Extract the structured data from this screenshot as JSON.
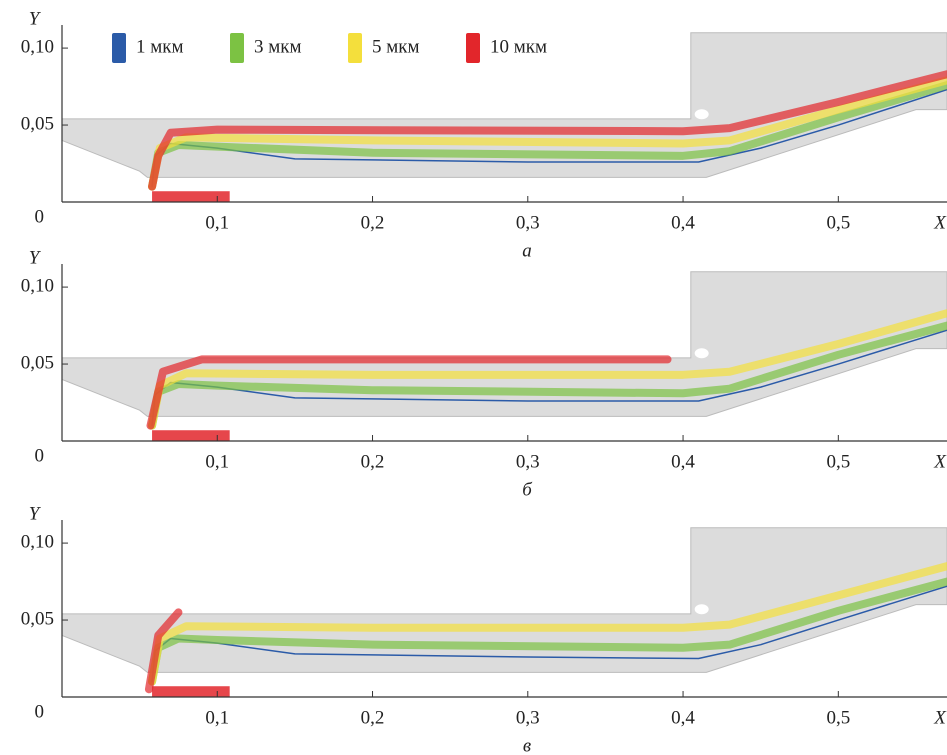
{
  "chart_data": [
    {
      "type": "line",
      "x_label": "X",
      "y_label": "Y",
      "caption": "а",
      "xlim": [
        0,
        0.57
      ],
      "ylim": [
        0,
        0.115
      ],
      "xticks": [
        {
          "value": 0.1,
          "label": "0,1"
        },
        {
          "value": 0.2,
          "label": "0,2"
        },
        {
          "value": 0.3,
          "label": "0,3"
        },
        {
          "value": 0.4,
          "label": "0,4"
        },
        {
          "value": 0.5,
          "label": "0,5"
        }
      ],
      "yticks": [
        0,
        {
          "value": 0.05,
          "label": "0,05"
        },
        {
          "value": 0.1,
          "label": "0,10"
        }
      ],
      "series": [
        {
          "name": "1 мкм",
          "color": "#2b5ba8",
          "x": [
            0.058,
            0.06,
            0.07,
            0.1,
            0.15,
            0.3,
            0.41,
            0.45,
            0.5,
            0.57
          ],
          "values": [
            0.01,
            0.03,
            0.038,
            0.035,
            0.028,
            0.026,
            0.026,
            0.035,
            0.05,
            0.073
          ]
        },
        {
          "name": "3 мкм",
          "color": "#7cc243",
          "x": [
            0.058,
            0.062,
            0.075,
            0.1,
            0.2,
            0.4,
            0.43,
            0.5,
            0.57
          ],
          "values": [
            0.01,
            0.032,
            0.037,
            0.036,
            0.032,
            0.03,
            0.033,
            0.055,
            0.076
          ]
        },
        {
          "name": "5 мкм",
          "color": "#f4df3c",
          "x": [
            0.058,
            0.063,
            0.08,
            0.2,
            0.4,
            0.43,
            0.5,
            0.57
          ],
          "values": [
            0.01,
            0.035,
            0.042,
            0.04,
            0.038,
            0.04,
            0.06,
            0.079
          ]
        },
        {
          "name": "10 мкм",
          "color": "#e2262b",
          "x": [
            0.058,
            0.062,
            0.07,
            0.1,
            0.4,
            0.43,
            0.5,
            0.57
          ],
          "values": [
            0.01,
            0.03,
            0.045,
            0.047,
            0.046,
            0.048,
            0.065,
            0.083
          ]
        }
      ]
    },
    {
      "type": "line",
      "x_label": "X",
      "y_label": "Y",
      "caption": "б",
      "xlim": [
        0,
        0.57
      ],
      "ylim": [
        0,
        0.115
      ],
      "xticks": [
        {
          "value": 0.1,
          "label": "0,1"
        },
        {
          "value": 0.2,
          "label": "0,2"
        },
        {
          "value": 0.3,
          "label": "0,3"
        },
        {
          "value": 0.4,
          "label": "0,4"
        },
        {
          "value": 0.5,
          "label": "0,5"
        }
      ],
      "yticks": [
        0,
        {
          "value": 0.05,
          "label": "0,05"
        },
        {
          "value": 0.1,
          "label": "0,10"
        }
      ],
      "series": [
        {
          "color": "#2b5ba8",
          "x": [
            0.058,
            0.06,
            0.07,
            0.1,
            0.15,
            0.3,
            0.41,
            0.45,
            0.5,
            0.57
          ],
          "values": [
            0.01,
            0.03,
            0.038,
            0.035,
            0.028,
            0.026,
            0.026,
            0.035,
            0.05,
            0.072
          ]
        },
        {
          "color": "#7cc243",
          "x": [
            0.058,
            0.062,
            0.075,
            0.1,
            0.2,
            0.4,
            0.43,
            0.5,
            0.57
          ],
          "values": [
            0.01,
            0.032,
            0.037,
            0.036,
            0.033,
            0.031,
            0.034,
            0.056,
            0.075
          ]
        },
        {
          "color": "#f4df3c",
          "x": [
            0.058,
            0.063,
            0.08,
            0.2,
            0.4,
            0.43,
            0.5,
            0.57
          ],
          "values": [
            0.01,
            0.036,
            0.044,
            0.043,
            0.043,
            0.045,
            0.063,
            0.083
          ]
        },
        {
          "color": "#e2262b",
          "x": [
            0.057,
            0.065,
            0.09,
            0.39
          ],
          "values": [
            0.01,
            0.045,
            0.053,
            0.053
          ]
        }
      ]
    },
    {
      "type": "line",
      "x_label": "X",
      "y_label": "Y",
      "caption": "в",
      "xlim": [
        0,
        0.57
      ],
      "ylim": [
        0,
        0.115
      ],
      "xticks": [
        {
          "value": 0.1,
          "label": "0,1"
        },
        {
          "value": 0.2,
          "label": "0,2"
        },
        {
          "value": 0.3,
          "label": "0,3"
        },
        {
          "value": 0.4,
          "label": "0,4"
        },
        {
          "value": 0.5,
          "label": "0,5"
        }
      ],
      "yticks": [
        0,
        {
          "value": 0.05,
          "label": "0,05"
        },
        {
          "value": 0.1,
          "label": "0,10"
        }
      ],
      "series": [
        {
          "color": "#2b5ba8",
          "x": [
            0.058,
            0.06,
            0.07,
            0.1,
            0.15,
            0.3,
            0.41,
            0.45,
            0.5,
            0.57
          ],
          "values": [
            0.01,
            0.03,
            0.038,
            0.035,
            0.028,
            0.026,
            0.025,
            0.034,
            0.05,
            0.072
          ]
        },
        {
          "color": "#7cc243",
          "x": [
            0.058,
            0.062,
            0.075,
            0.1,
            0.2,
            0.4,
            0.43,
            0.5,
            0.57
          ],
          "values": [
            0.01,
            0.032,
            0.038,
            0.037,
            0.034,
            0.032,
            0.034,
            0.056,
            0.075
          ]
        },
        {
          "color": "#f4df3c",
          "x": [
            0.058,
            0.063,
            0.08,
            0.2,
            0.4,
            0.43,
            0.5,
            0.57
          ],
          "values": [
            0.01,
            0.038,
            0.046,
            0.045,
            0.045,
            0.047,
            0.066,
            0.085
          ]
        },
        {
          "color": "#e2262b",
          "x": [
            0.056,
            0.062,
            0.075
          ],
          "values": [
            0.005,
            0.04,
            0.055
          ]
        }
      ]
    }
  ]
}
